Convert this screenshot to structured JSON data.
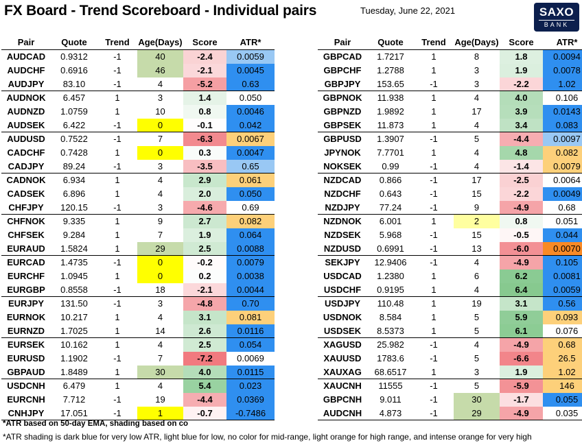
{
  "header": {
    "title": "FX Board - Trend Scoreboard - Individual pairs",
    "date": "Tuesday, June 22, 2021",
    "logo_line1": "SAXO",
    "logo_line2": "BANK"
  },
  "columns": [
    "Pair",
    "Quote",
    "Trend",
    "Age(Days)",
    "Score",
    "ATR*"
  ],
  "colors": {
    "age_green": "#c6dbaa",
    "age_yellow": "#ffff00",
    "age_lightyellow": "#ffffa0",
    "atr_darkblue": "#2f8ff0",
    "atr_lightblue": "#99c8f4",
    "atr_lightorange": "#fdd07a",
    "atr_intenseorange": "#f98a26",
    "score_positive_strong": "#72c07c",
    "score_negative_strong": "#f0747a"
  },
  "chart_data": {
    "type": "table",
    "title": "FX Board - Trend Scoreboard - Individual pairs",
    "columns": [
      "Pair",
      "Quote",
      "Trend",
      "Age(Days)",
      "Score",
      "ATR*"
    ],
    "left_table": [
      {
        "pair": "AUDCAD",
        "quote": "0.9312",
        "trend": "-1",
        "age": "40",
        "score": "-2.4",
        "atr": "0.0059",
        "age_shade": "green",
        "atr_shade": "lightblue"
      },
      {
        "pair": "AUDCHF",
        "quote": "0.6916",
        "trend": "-1",
        "age": "46",
        "score": "-2.1",
        "atr": "0.0045",
        "age_shade": "green",
        "atr_shade": "darkblue"
      },
      {
        "pair": "AUDJPY",
        "quote": "83.10",
        "trend": "-1",
        "age": "4",
        "score": "-5.2",
        "atr": "0.63",
        "age_shade": "",
        "atr_shade": "darkblue"
      },
      {
        "pair": "AUDNOK",
        "quote": "6.457",
        "trend": "1",
        "age": "3",
        "score": "1.4",
        "atr": "0.050",
        "age_shade": "",
        "atr_shade": ""
      },
      {
        "pair": "AUDNZD",
        "quote": "1.0759",
        "trend": "1",
        "age": "10",
        "score": "0.8",
        "atr": "0.0046",
        "age_shade": "",
        "atr_shade": "darkblue"
      },
      {
        "pair": "AUDSEK",
        "quote": "6.422",
        "trend": "-1",
        "age": "0",
        "score": "-0.1",
        "atr": "0.042",
        "age_shade": "yellow",
        "atr_shade": "darkblue"
      },
      {
        "pair": "AUDUSD",
        "quote": "0.7522",
        "trend": "-1",
        "age": "7",
        "score": "-6.3",
        "atr": "0.0067",
        "age_shade": "",
        "atr_shade": "lightorange"
      },
      {
        "pair": "CADCHF",
        "quote": "0.7428",
        "trend": "1",
        "age": "0",
        "score": "0.3",
        "atr": "0.0047",
        "age_shade": "yellow",
        "atr_shade": "darkblue"
      },
      {
        "pair": "CADJPY",
        "quote": "89.24",
        "trend": "-1",
        "age": "3",
        "score": "-3.5",
        "atr": "0.65",
        "age_shade": "",
        "atr_shade": "lightblue"
      },
      {
        "pair": "CADNOK",
        "quote": "6.934",
        "trend": "1",
        "age": "4",
        "score": "2.9",
        "atr": "0.061",
        "age_shade": "",
        "atr_shade": "lightorange"
      },
      {
        "pair": "CADSEK",
        "quote": "6.896",
        "trend": "1",
        "age": "4",
        "score": "2.0",
        "atr": "0.050",
        "age_shade": "",
        "atr_shade": "darkblue"
      },
      {
        "pair": "CHFJPY",
        "quote": "120.15",
        "trend": "-1",
        "age": "3",
        "score": "-4.6",
        "atr": "0.69",
        "age_shade": "",
        "atr_shade": ""
      },
      {
        "pair": "CHFNOK",
        "quote": "9.335",
        "trend": "1",
        "age": "9",
        "score": "2.7",
        "atr": "0.082",
        "age_shade": "",
        "atr_shade": "lightorange"
      },
      {
        "pair": "CHFSEK",
        "quote": "9.284",
        "trend": "1",
        "age": "7",
        "score": "1.9",
        "atr": "0.064",
        "age_shade": "",
        "atr_shade": "darkblue"
      },
      {
        "pair": "EURAUD",
        "quote": "1.5824",
        "trend": "1",
        "age": "29",
        "score": "2.5",
        "atr": "0.0088",
        "age_shade": "green",
        "atr_shade": "darkblue"
      },
      {
        "pair": "EURCAD",
        "quote": "1.4735",
        "trend": "-1",
        "age": "0",
        "score": "-0.2",
        "atr": "0.0079",
        "age_shade": "yellow",
        "atr_shade": "darkblue"
      },
      {
        "pair": "EURCHF",
        "quote": "1.0945",
        "trend": "1",
        "age": "0",
        "score": "0.2",
        "atr": "0.0038",
        "age_shade": "yellow",
        "atr_shade": "darkblue"
      },
      {
        "pair": "EURGBP",
        "quote": "0.8558",
        "trend": "-1",
        "age": "18",
        "score": "-2.1",
        "atr": "0.0044",
        "age_shade": "",
        "atr_shade": "darkblue"
      },
      {
        "pair": "EURJPY",
        "quote": "131.50",
        "trend": "-1",
        "age": "3",
        "score": "-4.8",
        "atr": "0.70",
        "age_shade": "",
        "atr_shade": "darkblue"
      },
      {
        "pair": "EURNOK",
        "quote": "10.217",
        "trend": "1",
        "age": "4",
        "score": "3.1",
        "atr": "0.081",
        "age_shade": "",
        "atr_shade": "lightorange"
      },
      {
        "pair": "EURNZD",
        "quote": "1.7025",
        "trend": "1",
        "age": "14",
        "score": "2.6",
        "atr": "0.0116",
        "age_shade": "",
        "atr_shade": "darkblue"
      },
      {
        "pair": "EURSEK",
        "quote": "10.162",
        "trend": "1",
        "age": "4",
        "score": "2.5",
        "atr": "0.054",
        "age_shade": "",
        "atr_shade": "darkblue"
      },
      {
        "pair": "EURUSD",
        "quote": "1.1902",
        "trend": "-1",
        "age": "7",
        "score": "-7.2",
        "atr": "0.0069",
        "age_shade": "",
        "atr_shade": ""
      },
      {
        "pair": "GBPAUD",
        "quote": "1.8489",
        "trend": "1",
        "age": "30",
        "score": "4.0",
        "atr": "0.0115",
        "age_shade": "green",
        "atr_shade": "darkblue"
      },
      {
        "pair": "USDCNH",
        "quote": "6.479",
        "trend": "1",
        "age": "4",
        "score": "5.4",
        "atr": "0.023",
        "age_shade": "",
        "atr_shade": "darkblue"
      },
      {
        "pair": "EURCNH",
        "quote": "7.712",
        "trend": "-1",
        "age": "19",
        "score": "-4.4",
        "atr": "0.0369",
        "age_shade": "",
        "atr_shade": "darkblue"
      },
      {
        "pair": "CNHJPY",
        "quote": "17.051",
        "trend": "-1",
        "age": "1",
        "score": "-0.7",
        "atr": "-0.7486",
        "age_shade": "yellow",
        "atr_shade": "darkblue"
      }
    ],
    "right_table": [
      {
        "pair": "GBPCAD",
        "quote": "1.7217",
        "trend": "1",
        "age": "8",
        "score": "1.8",
        "atr": "0.0094",
        "age_shade": "",
        "atr_shade": "darkblue"
      },
      {
        "pair": "GBPCHF",
        "quote": "1.2788",
        "trend": "1",
        "age": "3",
        "score": "1.9",
        "atr": "0.0078",
        "age_shade": "",
        "atr_shade": "darkblue"
      },
      {
        "pair": "GBPJPY",
        "quote": "153.65",
        "trend": "-1",
        "age": "3",
        "score": "-2.2",
        "atr": "1.02",
        "age_shade": "",
        "atr_shade": "darkblue"
      },
      {
        "pair": "GBPNOK",
        "quote": "11.938",
        "trend": "1",
        "age": "4",
        "score": "4.0",
        "atr": "0.106",
        "age_shade": "",
        "atr_shade": ""
      },
      {
        "pair": "GBPNZD",
        "quote": "1.9892",
        "trend": "1",
        "age": "17",
        "score": "3.9",
        "atr": "0.0143",
        "age_shade": "",
        "atr_shade": "darkblue"
      },
      {
        "pair": "GBPSEK",
        "quote": "11.873",
        "trend": "1",
        "age": "4",
        "score": "3.4",
        "atr": "0.083",
        "age_shade": "",
        "atr_shade": "darkblue"
      },
      {
        "pair": "GBPUSD",
        "quote": "1.3907",
        "trend": "-1",
        "age": "5",
        "score": "-4.4",
        "atr": "0.0097",
        "age_shade": "",
        "atr_shade": "lightblue"
      },
      {
        "pair": "JPYNOK",
        "quote": "7.7701",
        "trend": "1",
        "age": "4",
        "score": "4.8",
        "atr": "0.082",
        "age_shade": "",
        "atr_shade": "lightorange"
      },
      {
        "pair": "NOKSEK",
        "quote": "0.99",
        "trend": "-1",
        "age": "4",
        "score": "-1.4",
        "atr": "0.0079",
        "age_shade": "",
        "atr_shade": "lightorange"
      },
      {
        "pair": "NZDCAD",
        "quote": "0.866",
        "trend": "-1",
        "age": "17",
        "score": "-2.5",
        "atr": "0.0064",
        "age_shade": "",
        "atr_shade": ""
      },
      {
        "pair": "NZDCHF",
        "quote": "0.643",
        "trend": "-1",
        "age": "15",
        "score": "-2.2",
        "atr": "0.0049",
        "age_shade": "",
        "atr_shade": "darkblue"
      },
      {
        "pair": "NZDJPY",
        "quote": "77.24",
        "trend": "-1",
        "age": "9",
        "score": "-4.9",
        "atr": "0.68",
        "age_shade": "",
        "atr_shade": ""
      },
      {
        "pair": "NZDNOK",
        "quote": "6.001",
        "trend": "1",
        "age": "2",
        "score": "0.8",
        "atr": "0.051",
        "age_shade": "lightyellow",
        "atr_shade": ""
      },
      {
        "pair": "NZDSEK",
        "quote": "5.968",
        "trend": "-1",
        "age": "15",
        "score": "-0.5",
        "atr": "0.044",
        "age_shade": "",
        "atr_shade": "darkblue"
      },
      {
        "pair": "NZDUSD",
        "quote": "0.6991",
        "trend": "-1",
        "age": "13",
        "score": "-6.0",
        "atr": "0.0070",
        "age_shade": "",
        "atr_shade": "intenseorange"
      },
      {
        "pair": "SEKJPY",
        "quote": "12.9406",
        "trend": "-1",
        "age": "4",
        "score": "-4.9",
        "atr": "0.105",
        "age_shade": "",
        "atr_shade": "darkblue"
      },
      {
        "pair": "USDCAD",
        "quote": "1.2380",
        "trend": "1",
        "age": "6",
        "score": "6.2",
        "atr": "0.0081",
        "age_shade": "",
        "atr_shade": "darkblue"
      },
      {
        "pair": "USDCHF",
        "quote": "0.9195",
        "trend": "1",
        "age": "4",
        "score": "6.4",
        "atr": "0.0059",
        "age_shade": "",
        "atr_shade": "darkblue"
      },
      {
        "pair": "USDJPY",
        "quote": "110.48",
        "trend": "1",
        "age": "19",
        "score": "3.1",
        "atr": "0.56",
        "age_shade": "",
        "atr_shade": "darkblue"
      },
      {
        "pair": "USDNOK",
        "quote": "8.584",
        "trend": "1",
        "age": "5",
        "score": "5.9",
        "atr": "0.093",
        "age_shade": "",
        "atr_shade": "lightorange"
      },
      {
        "pair": "USDSEK",
        "quote": "8.5373",
        "trend": "1",
        "age": "5",
        "score": "6.1",
        "atr": "0.076",
        "age_shade": "",
        "atr_shade": ""
      },
      {
        "pair": "XAGUSD",
        "quote": "25.982",
        "trend": "-1",
        "age": "4",
        "score": "-4.9",
        "atr": "0.68",
        "age_shade": "",
        "atr_shade": "lightorange"
      },
      {
        "pair": "XAUUSD",
        "quote": "1783.6",
        "trend": "-1",
        "age": "5",
        "score": "-6.6",
        "atr": "26.5",
        "age_shade": "",
        "atr_shade": "lightorange"
      },
      {
        "pair": "XAUXAG",
        "quote": "68.6517",
        "trend": "1",
        "age": "3",
        "score": "1.9",
        "atr": "1.02",
        "age_shade": "",
        "atr_shade": "lightorange"
      },
      {
        "pair": "XAUCNH",
        "quote": "11555",
        "trend": "-1",
        "age": "5",
        "score": "-5.9",
        "atr": "146",
        "age_shade": "",
        "atr_shade": "lightorange"
      },
      {
        "pair": "GBPCNH",
        "quote": "9.011",
        "trend": "-1",
        "age": "30",
        "score": "-1.7",
        "atr": "0.055",
        "age_shade": "green",
        "atr_shade": "darkblue"
      },
      {
        "pair": "AUDCNH",
        "quote": "4.873",
        "trend": "-1",
        "age": "29",
        "score": "-4.9",
        "atr": "0.035",
        "age_shade": "green",
        "atr_shade": ""
      }
    ],
    "group_size": 3
  },
  "notes": {
    "note1": "*ATR based on 50-day EMA, shading based on co",
    "note2": "*ATR shading is dark blue for very low ATR, light blue for low, no color for mid-range, light orange for high range, and intense orange for very high"
  }
}
